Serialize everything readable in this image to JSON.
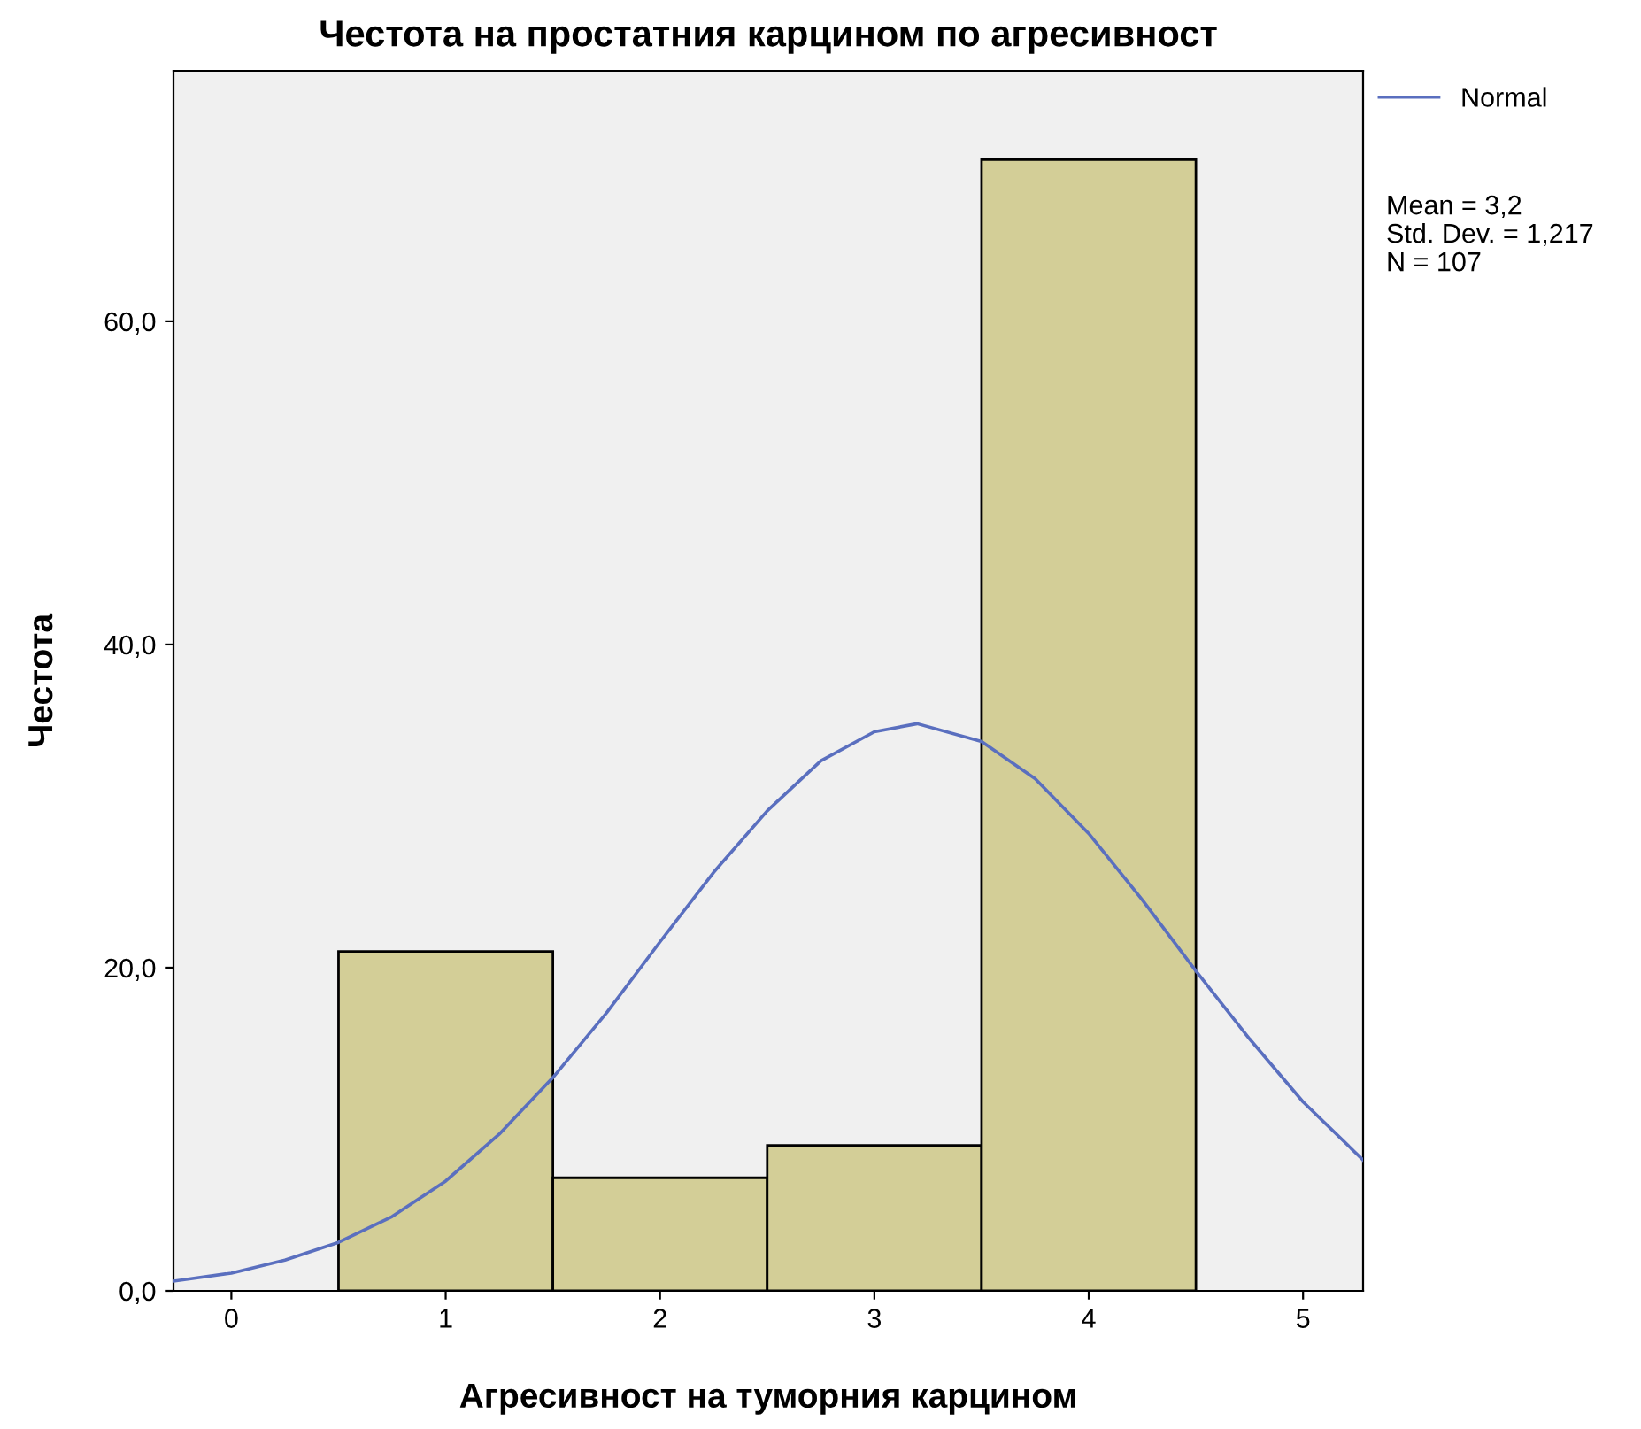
{
  "chart_data": {
    "type": "histogram",
    "title": "Честота на простатния карцином по агресивност",
    "xlabel": "Агресивност на туморния карцином",
    "ylabel": "Честота",
    "bins": [
      0.5,
      1.5,
      2.5,
      3.5,
      4.5
    ],
    "values": [
      21,
      7,
      9,
      70
    ],
    "color": "#d3ce97",
    "series": [
      {
        "name": "Normal",
        "type": "line",
        "color": "#5a6fbf",
        "x": [
          -0.27,
          0,
          0.25,
          0.5,
          0.75,
          1,
          1.25,
          1.5,
          1.75,
          2,
          2.25,
          2.5,
          2.75,
          3,
          3.2,
          3.5,
          3.75,
          4,
          4.25,
          4.5,
          4.75,
          5,
          5.28
        ],
        "values": [
          0.6,
          1.1,
          1.9,
          3.0,
          4.6,
          6.8,
          9.7,
          13.2,
          17.2,
          21.6,
          25.9,
          29.7,
          32.8,
          34.6,
          35.1,
          34.0,
          31.7,
          28.3,
          24.2,
          19.8,
          15.6,
          11.7,
          8.1
        ]
      }
    ],
    "xlim": [
      -0.27,
      5.28
    ],
    "ylim": [
      0,
      75.5
    ],
    "xticks": [
      0,
      1,
      2,
      3,
      4,
      5
    ],
    "yticks": [
      {
        "value": 0,
        "label": "0,0"
      },
      {
        "value": 20,
        "label": "20,0"
      },
      {
        "value": 40,
        "label": "40,0"
      },
      {
        "value": 60,
        "label": "60,0"
      }
    ],
    "legend": "top right",
    "grid": false,
    "annotations": [
      "Mean = 3,2",
      "Std. Dev. = 1,217",
      "N = 107"
    ]
  }
}
